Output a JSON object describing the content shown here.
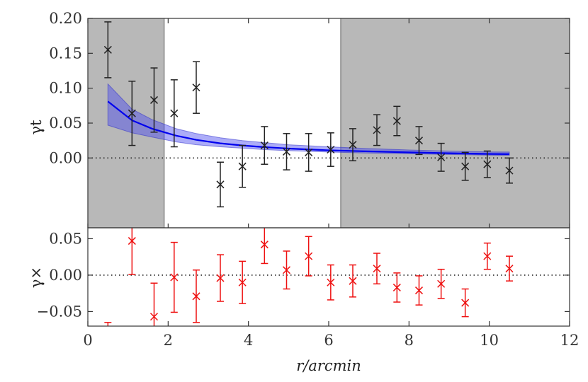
{
  "chart_data": [
    {
      "type": "scatter",
      "panel": "top",
      "ylabel": "γt",
      "xlim": [
        0,
        12
      ],
      "ylim": [
        -0.1,
        0.2
      ],
      "yticks": [
        0.0,
        0.05,
        0.1,
        0.15,
        0.2
      ],
      "ytick_labels": [
        "0.00",
        "0.05",
        "0.10",
        "0.15",
        "0.20"
      ],
      "excluded_regions": [
        [
          0,
          1.9
        ],
        [
          6.3,
          12
        ]
      ],
      "zero_line": "dotted",
      "series": [
        {
          "name": "measured γt",
          "marker": "x",
          "color": "#222222",
          "x": [
            0.5,
            1.1,
            1.65,
            2.15,
            2.7,
            3.3,
            3.85,
            4.4,
            4.95,
            5.5,
            6.05,
            6.6,
            7.2,
            7.7,
            8.25,
            8.8,
            9.4,
            9.95,
            10.5
          ],
          "y": [
            0.155,
            0.064,
            0.083,
            0.064,
            0.101,
            -0.038,
            -0.012,
            0.018,
            0.009,
            0.008,
            0.012,
            0.019,
            0.04,
            0.053,
            0.025,
            0.001,
            -0.012,
            -0.009,
            -0.018
          ],
          "err": [
            0.04,
            0.046,
            0.046,
            0.048,
            0.037,
            0.032,
            0.03,
            0.027,
            0.026,
            0.027,
            0.024,
            0.023,
            0.022,
            0.021,
            0.02,
            0.02,
            0.02,
            0.019,
            0.018
          ]
        },
        {
          "name": "model fit",
          "type": "line",
          "color": "#0000ee",
          "x": [
            0.5,
            1.1,
            1.6,
            2.2,
            2.7,
            3.3,
            3.85,
            4.4,
            5.0,
            6.0,
            7.0,
            8.0,
            9.0,
            10.0,
            10.5
          ],
          "y": [
            0.081,
            0.054,
            0.042,
            0.032,
            0.026,
            0.021,
            0.018,
            0.0155,
            0.0135,
            0.011,
            0.0095,
            0.008,
            0.0068,
            0.0058,
            0.0055
          ],
          "band_low": [
            0.047,
            0.036,
            0.03,
            0.023,
            0.019,
            0.016,
            0.014,
            0.012,
            0.0105,
            0.0085,
            0.007,
            0.006,
            0.005,
            0.004,
            0.0038
          ],
          "band_high": [
            0.106,
            0.07,
            0.055,
            0.042,
            0.035,
            0.029,
            0.025,
            0.022,
            0.019,
            0.016,
            0.0135,
            0.0115,
            0.01,
            0.0088,
            0.0085
          ]
        }
      ]
    },
    {
      "type": "scatter",
      "panel": "bottom",
      "ylabel": "γ×",
      "xlabel": "r/arcmin",
      "xlim": [
        0,
        12
      ],
      "ylim": [
        -0.07,
        0.065
      ],
      "xticks": [
        0,
        2,
        4,
        6,
        8,
        10,
        12
      ],
      "xtick_labels": [
        "0",
        "2",
        "4",
        "6",
        "8",
        "10",
        "12"
      ],
      "yticks": [
        -0.05,
        0.0,
        0.05
      ],
      "ytick_labels": [
        "−0.05",
        "0.00",
        "0.05"
      ],
      "zero_line": "dotted",
      "series": [
        {
          "name": "measured γ×",
          "marker": "x",
          "color": "#ee1111",
          "x": [
            0.5,
            1.1,
            1.65,
            2.15,
            2.7,
            3.3,
            3.85,
            4.4,
            4.95,
            5.5,
            6.05,
            6.6,
            7.2,
            7.7,
            8.25,
            8.8,
            9.4,
            9.95,
            10.5
          ],
          "y": [
            -0.09,
            0.047,
            -0.057,
            -0.003,
            -0.029,
            -0.004,
            -0.01,
            0.042,
            0.007,
            0.026,
            -0.01,
            -0.008,
            0.009,
            -0.017,
            -0.021,
            -0.012,
            -0.038,
            0.026,
            0.009
          ],
          "err": [
            0.025,
            0.046,
            0.046,
            0.048,
            0.036,
            0.032,
            0.029,
            0.026,
            0.026,
            0.027,
            0.024,
            0.022,
            0.021,
            0.02,
            0.02,
            0.02,
            0.019,
            0.018,
            0.017
          ]
        }
      ]
    }
  ]
}
